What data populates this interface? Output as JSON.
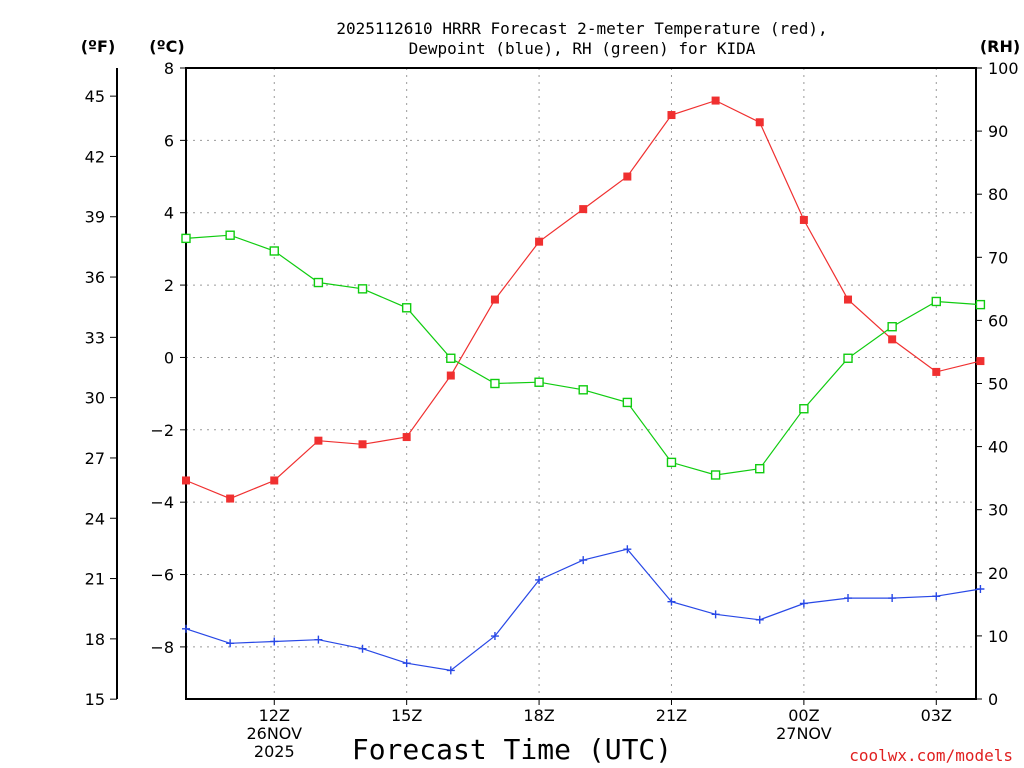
{
  "chart_data": {
    "type": "line",
    "title": [
      "2025112610 HRRR Forecast 2-meter Temperature (red),",
      "Dewpoint (blue), RH (green) for KIDA"
    ],
    "xlabel": "Forecast Time (UTC)",
    "watermark": "coolwx.com/models",
    "units": {
      "left_f": "(ºF)",
      "left_c": "(ºC)",
      "right": "(RH)"
    },
    "colors": {
      "temp": "#f03030",
      "dew": "#2848e6",
      "rh": "#10cc10",
      "grid": "#9a9a9a",
      "watermark": "#e02020"
    },
    "x_hours": [
      10,
      11,
      12,
      13,
      14,
      15,
      16,
      17,
      18,
      19,
      20,
      21,
      22,
      23,
      24,
      25,
      26,
      27,
      28
    ],
    "x_range": [
      10,
      27.9
    ],
    "x_ticks": [
      {
        "h": 12,
        "lines": [
          "12Z",
          "26NOV",
          "2025"
        ]
      },
      {
        "h": 15,
        "lines": [
          "15Z"
        ]
      },
      {
        "h": 18,
        "lines": [
          "18Z"
        ]
      },
      {
        "h": 21,
        "lines": [
          "21Z"
        ]
      },
      {
        "h": 24,
        "lines": [
          "00Z",
          "27NOV"
        ]
      },
      {
        "h": 27,
        "lines": [
          "03Z"
        ]
      }
    ],
    "y_c_range": [
      -9.44,
      8
    ],
    "y_c_ticks": [
      8,
      6,
      4,
      2,
      0,
      -2,
      -4,
      -6,
      -8
    ],
    "y_f_ticks": [
      45,
      42,
      39,
      36,
      33,
      30,
      27,
      24,
      21,
      18,
      15
    ],
    "y_rh_range": [
      0,
      100
    ],
    "y_rh_ticks": [
      100,
      90,
      80,
      70,
      60,
      50,
      40,
      30,
      20,
      10,
      0
    ],
    "series": [
      {
        "name": "Temperature",
        "unit": "C",
        "marker": "filled-square",
        "values": [
          -3.4,
          -3.9,
          -3.4,
          -2.3,
          -2.4,
          -2.2,
          -0.5,
          1.6,
          3.2,
          4.1,
          5.0,
          6.7,
          7.1,
          6.5,
          3.8,
          1.6,
          0.5,
          -0.4,
          -0.1
        ]
      },
      {
        "name": "Dewpoint",
        "unit": "C",
        "marker": "plus",
        "values": [
          -7.5,
          -7.9,
          -7.85,
          -7.8,
          -8.05,
          -8.45,
          -8.65,
          -7.7,
          -6.15,
          -5.6,
          -5.3,
          -6.75,
          -7.1,
          -7.25,
          -6.8,
          -6.65,
          -6.65,
          -6.6,
          -6.4
        ]
      },
      {
        "name": "RH",
        "unit": "%",
        "marker": "open-square",
        "values": [
          73,
          73.5,
          71,
          66,
          65,
          62,
          54,
          50,
          50.2,
          49,
          47,
          37.5,
          35.5,
          36.5,
          46,
          54,
          59,
          63,
          62.5
        ]
      }
    ]
  }
}
